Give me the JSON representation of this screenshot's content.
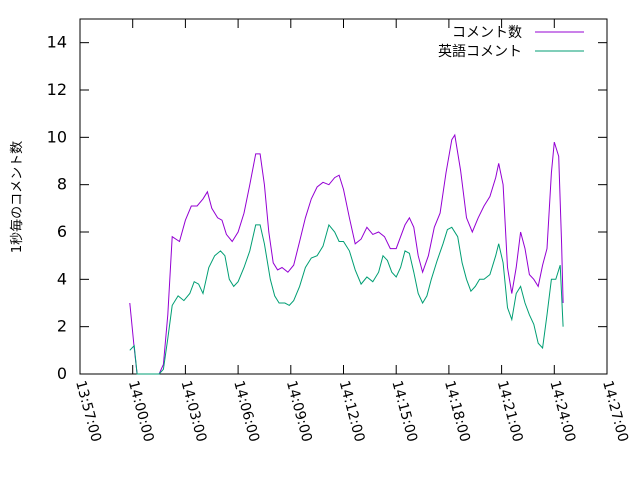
{
  "chart_data": {
    "type": "line",
    "title": "",
    "xlabel": "",
    "ylabel": "1秒毎のコメント数",
    "ylim": [
      0,
      15
    ],
    "yticks": [
      0,
      2,
      4,
      6,
      8,
      10,
      12,
      14
    ],
    "xlim": [
      "13:57:00",
      "14:27:00"
    ],
    "xticks": [
      "13:57:00",
      "14:00:00",
      "14:03:00",
      "14:06:00",
      "14:09:00",
      "14:12:00",
      "14:15:00",
      "14:18:00",
      "14:21:00",
      "14:24:00",
      "14:27:00"
    ],
    "grid": false,
    "legend_position": "top-right",
    "series": [
      {
        "name": "コメント数",
        "color": "#9400d3",
        "points": [
          [
            "13:59:50",
            3.0
          ],
          [
            "14:00:05",
            1.1
          ],
          [
            "14:00:15",
            0.0
          ],
          [
            "14:01:30",
            0.0
          ],
          [
            "14:01:45",
            0.4
          ],
          [
            "14:02:00",
            2.5
          ],
          [
            "14:02:15",
            5.8
          ],
          [
            "14:02:40",
            5.6
          ],
          [
            "14:03:00",
            6.5
          ],
          [
            "14:03:20",
            7.1
          ],
          [
            "14:03:40",
            7.1
          ],
          [
            "14:04:00",
            7.4
          ],
          [
            "14:04:15",
            7.7
          ],
          [
            "14:04:30",
            7.0
          ],
          [
            "14:04:50",
            6.6
          ],
          [
            "14:05:05",
            6.5
          ],
          [
            "14:05:20",
            5.9
          ],
          [
            "14:05:40",
            5.6
          ],
          [
            "14:06:00",
            6.0
          ],
          [
            "14:06:20",
            6.8
          ],
          [
            "14:06:40",
            8.0
          ],
          [
            "14:07:00",
            9.3
          ],
          [
            "14:07:15",
            9.3
          ],
          [
            "14:07:30",
            8.0
          ],
          [
            "14:07:45",
            6.0
          ],
          [
            "14:08:00",
            4.7
          ],
          [
            "14:08:15",
            4.4
          ],
          [
            "14:08:30",
            4.5
          ],
          [
            "14:08:50",
            4.3
          ],
          [
            "14:09:10",
            4.6
          ],
          [
            "14:09:30",
            5.6
          ],
          [
            "14:09:50",
            6.6
          ],
          [
            "14:10:10",
            7.4
          ],
          [
            "14:10:30",
            7.9
          ],
          [
            "14:10:50",
            8.1
          ],
          [
            "14:11:10",
            8.0
          ],
          [
            "14:11:30",
            8.3
          ],
          [
            "14:11:45",
            8.4
          ],
          [
            "14:12:00",
            7.8
          ],
          [
            "14:12:20",
            6.6
          ],
          [
            "14:12:40",
            5.5
          ],
          [
            "14:13:00",
            5.7
          ],
          [
            "14:13:20",
            6.2
          ],
          [
            "14:13:40",
            5.9
          ],
          [
            "14:14:00",
            6.0
          ],
          [
            "14:14:20",
            5.8
          ],
          [
            "14:14:40",
            5.3
          ],
          [
            "14:15:00",
            5.3
          ],
          [
            "14:15:15",
            5.8
          ],
          [
            "14:15:30",
            6.3
          ],
          [
            "14:15:45",
            6.6
          ],
          [
            "14:16:00",
            6.2
          ],
          [
            "14:16:15",
            5.0
          ],
          [
            "14:16:30",
            4.3
          ],
          [
            "14:16:50",
            5.0
          ],
          [
            "14:17:10",
            6.2
          ],
          [
            "14:17:30",
            6.8
          ],
          [
            "14:17:50",
            8.5
          ],
          [
            "14:18:10",
            9.9
          ],
          [
            "14:18:20",
            10.1
          ],
          [
            "14:18:40",
            8.6
          ],
          [
            "14:19:00",
            6.6
          ],
          [
            "14:19:20",
            6.0
          ],
          [
            "14:19:40",
            6.6
          ],
          [
            "14:20:00",
            7.1
          ],
          [
            "14:20:20",
            7.5
          ],
          [
            "14:20:40",
            8.3
          ],
          [
            "14:20:50",
            8.9
          ],
          [
            "14:21:05",
            8.0
          ],
          [
            "14:21:20",
            4.5
          ],
          [
            "14:21:35",
            3.4
          ],
          [
            "14:21:50",
            4.5
          ],
          [
            "14:22:05",
            6.0
          ],
          [
            "14:22:20",
            5.3
          ],
          [
            "14:22:35",
            4.2
          ],
          [
            "14:22:50",
            4.0
          ],
          [
            "14:23:05",
            3.7
          ],
          [
            "14:23:20",
            4.6
          ],
          [
            "14:23:35",
            5.3
          ],
          [
            "14:23:50",
            8.5
          ],
          [
            "14:24:00",
            9.8
          ],
          [
            "14:24:15",
            9.2
          ],
          [
            "14:24:25",
            5.5
          ],
          [
            "14:24:30",
            3.0
          ]
        ]
      },
      {
        "name": "英語コメント",
        "color": "#009e73",
        "points": [
          [
            "13:59:50",
            1.0
          ],
          [
            "14:00:05",
            1.2
          ],
          [
            "14:00:15",
            0.0
          ],
          [
            "14:01:30",
            0.0
          ],
          [
            "14:01:45",
            0.2
          ],
          [
            "14:02:00",
            1.5
          ],
          [
            "14:02:15",
            2.9
          ],
          [
            "14:02:35",
            3.3
          ],
          [
            "14:02:55",
            3.1
          ],
          [
            "14:03:15",
            3.4
          ],
          [
            "14:03:30",
            3.9
          ],
          [
            "14:03:45",
            3.8
          ],
          [
            "14:04:00",
            3.4
          ],
          [
            "14:04:20",
            4.5
          ],
          [
            "14:04:40",
            5.0
          ],
          [
            "14:05:00",
            5.2
          ],
          [
            "14:05:15",
            5.0
          ],
          [
            "14:05:30",
            4.0
          ],
          [
            "14:05:45",
            3.7
          ],
          [
            "14:06:00",
            3.9
          ],
          [
            "14:06:20",
            4.5
          ],
          [
            "14:06:40",
            5.2
          ],
          [
            "14:07:00",
            6.3
          ],
          [
            "14:07:15",
            6.3
          ],
          [
            "14:07:30",
            5.5
          ],
          [
            "14:07:50",
            4.0
          ],
          [
            "14:08:05",
            3.3
          ],
          [
            "14:08:20",
            3.0
          ],
          [
            "14:08:40",
            3.0
          ],
          [
            "14:08:55",
            2.9
          ],
          [
            "14:09:10",
            3.1
          ],
          [
            "14:09:30",
            3.7
          ],
          [
            "14:09:50",
            4.5
          ],
          [
            "14:10:10",
            4.9
          ],
          [
            "14:10:30",
            5.0
          ],
          [
            "14:10:50",
            5.4
          ],
          [
            "14:11:10",
            6.3
          ],
          [
            "14:11:30",
            6.0
          ],
          [
            "14:11:45",
            5.6
          ],
          [
            "14:12:00",
            5.6
          ],
          [
            "14:12:20",
            5.2
          ],
          [
            "14:12:40",
            4.4
          ],
          [
            "14:13:00",
            3.8
          ],
          [
            "14:13:20",
            4.1
          ],
          [
            "14:13:40",
            3.9
          ],
          [
            "14:14:00",
            4.3
          ],
          [
            "14:14:15",
            5.0
          ],
          [
            "14:14:30",
            4.8
          ],
          [
            "14:14:45",
            4.3
          ],
          [
            "14:15:00",
            4.1
          ],
          [
            "14:15:15",
            4.5
          ],
          [
            "14:15:30",
            5.2
          ],
          [
            "14:15:45",
            5.1
          ],
          [
            "14:16:00",
            4.3
          ],
          [
            "14:16:15",
            3.4
          ],
          [
            "14:16:30",
            3.0
          ],
          [
            "14:16:45",
            3.3
          ],
          [
            "14:17:00",
            4.0
          ],
          [
            "14:17:20",
            4.8
          ],
          [
            "14:17:40",
            5.5
          ],
          [
            "14:17:55",
            6.1
          ],
          [
            "14:18:10",
            6.2
          ],
          [
            "14:18:30",
            5.8
          ],
          [
            "14:18:45",
            4.7
          ],
          [
            "14:19:00",
            4.0
          ],
          [
            "14:19:15",
            3.5
          ],
          [
            "14:19:30",
            3.7
          ],
          [
            "14:19:45",
            4.0
          ],
          [
            "14:20:00",
            4.0
          ],
          [
            "14:20:20",
            4.2
          ],
          [
            "14:20:40",
            5.0
          ],
          [
            "14:20:50",
            5.5
          ],
          [
            "14:21:05",
            4.7
          ],
          [
            "14:21:20",
            2.8
          ],
          [
            "14:21:35",
            2.3
          ],
          [
            "14:21:50",
            3.4
          ],
          [
            "14:22:05",
            3.7
          ],
          [
            "14:22:20",
            3.0
          ],
          [
            "14:22:35",
            2.5
          ],
          [
            "14:22:50",
            2.1
          ],
          [
            "14:23:05",
            1.3
          ],
          [
            "14:23:20",
            1.1
          ],
          [
            "14:23:35",
            2.5
          ],
          [
            "14:23:50",
            4.0
          ],
          [
            "14:24:05",
            4.0
          ],
          [
            "14:24:20",
            4.6
          ],
          [
            "14:24:30",
            2.0
          ]
        ]
      }
    ]
  }
}
